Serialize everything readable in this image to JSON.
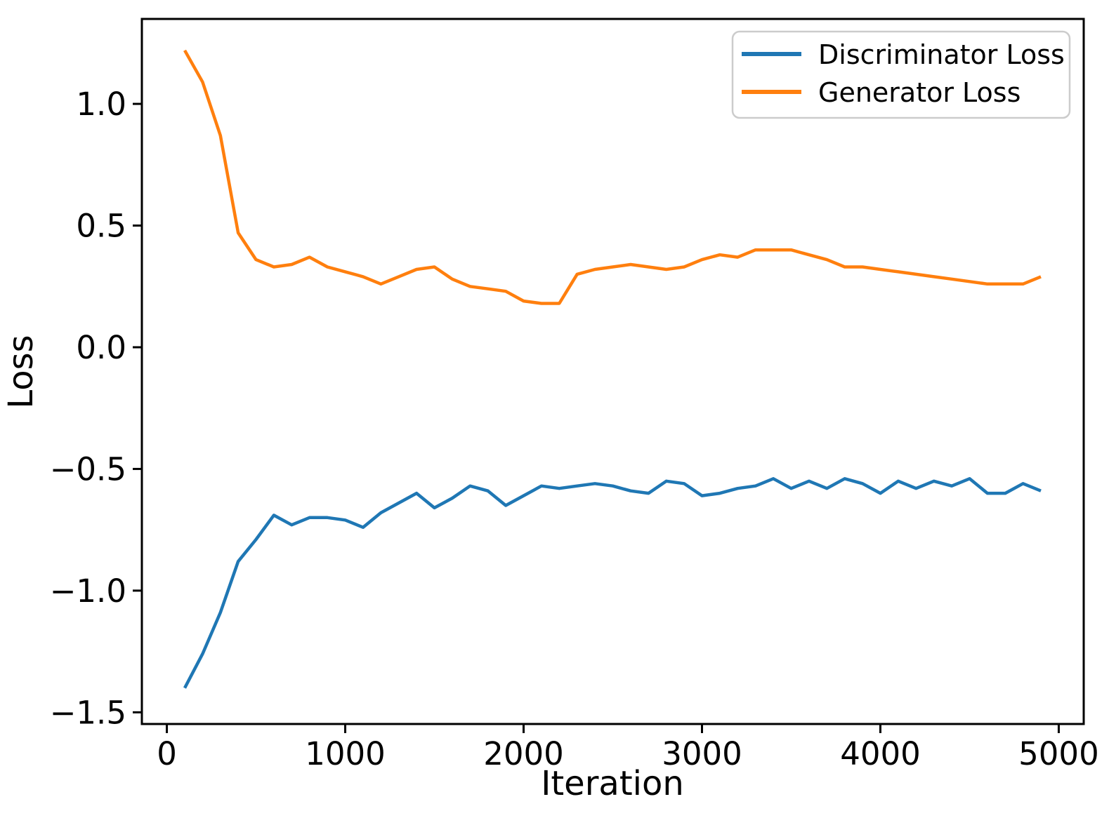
{
  "figure": {
    "background": "#ffffff",
    "frame_color": "#000000",
    "legend_border_color": "#cccccc"
  },
  "chart_data": {
    "type": "line",
    "title": "",
    "xlabel": "Iteration",
    "ylabel": "Loss",
    "grid": false,
    "legend_position": "upper right",
    "xlim": [
      -140,
      5140
    ],
    "ylim": [
      -1.548,
      1.349
    ],
    "x_ticks": [
      0,
      1000,
      2000,
      3000,
      4000,
      5000
    ],
    "x_tick_labels": [
      "0",
      "1000",
      "2000",
      "3000",
      "4000",
      "5000"
    ],
    "y_ticks": [
      -1.5,
      -1.0,
      -0.5,
      0.0,
      0.5,
      1.0
    ],
    "y_tick_labels": [
      "−1.5",
      "−1.0",
      "−0.5",
      "0.0",
      "0.5",
      "1.0"
    ],
    "x": [
      100,
      200,
      300,
      400,
      500,
      600,
      700,
      800,
      900,
      1000,
      1100,
      1200,
      1300,
      1400,
      1500,
      1600,
      1700,
      1800,
      1900,
      2000,
      2100,
      2200,
      2300,
      2400,
      2500,
      2600,
      2700,
      2800,
      2900,
      3000,
      3100,
      3200,
      3300,
      3400,
      3500,
      3600,
      3700,
      3800,
      3900,
      4000,
      4100,
      4200,
      4300,
      4400,
      4500,
      4600,
      4700,
      4800,
      4900
    ],
    "series": [
      {
        "name": "Discriminator Loss",
        "color": "#1f77b4",
        "values": [
          -1.4,
          -1.26,
          -1.09,
          -0.88,
          -0.79,
          -0.69,
          -0.73,
          -0.7,
          -0.7,
          -0.71,
          -0.74,
          -0.68,
          -0.64,
          -0.6,
          -0.66,
          -0.62,
          -0.57,
          -0.59,
          -0.65,
          -0.61,
          -0.57,
          -0.58,
          -0.57,
          -0.56,
          -0.57,
          -0.59,
          -0.6,
          -0.55,
          -0.56,
          -0.61,
          -0.6,
          -0.58,
          -0.57,
          -0.54,
          -0.58,
          -0.55,
          -0.58,
          -0.54,
          -0.56,
          -0.6,
          -0.55,
          -0.58,
          -0.55,
          -0.57,
          -0.54,
          -0.6,
          -0.6,
          -0.56,
          -0.59
        ]
      },
      {
        "name": "Generator Loss",
        "color": "#ff7f0e",
        "values": [
          1.22,
          1.09,
          0.87,
          0.47,
          0.36,
          0.33,
          0.34,
          0.37,
          0.33,
          0.31,
          0.29,
          0.26,
          0.29,
          0.32,
          0.33,
          0.28,
          0.25,
          0.24,
          0.23,
          0.19,
          0.18,
          0.18,
          0.3,
          0.32,
          0.33,
          0.34,
          0.33,
          0.32,
          0.33,
          0.36,
          0.38,
          0.37,
          0.4,
          0.4,
          0.4,
          0.38,
          0.36,
          0.33,
          0.33,
          0.32,
          0.31,
          0.3,
          0.29,
          0.28,
          0.27,
          0.26,
          0.26,
          0.26,
          0.29
        ]
      }
    ]
  }
}
